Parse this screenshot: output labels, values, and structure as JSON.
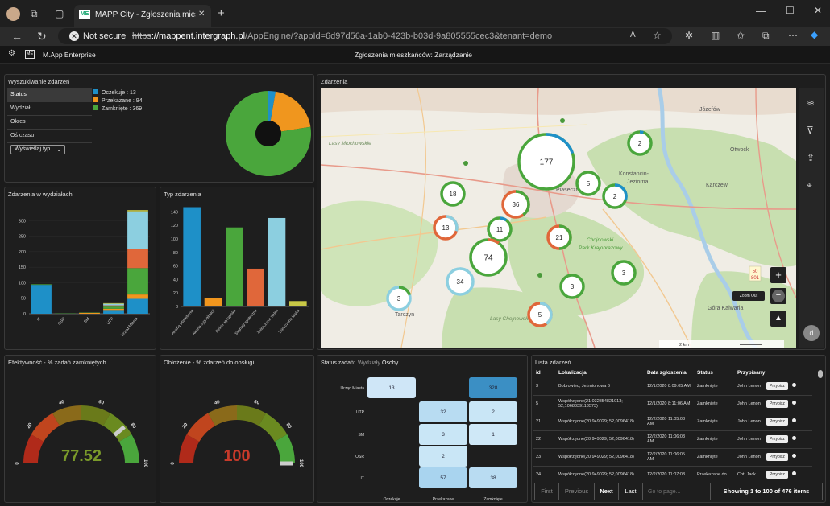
{
  "browser": {
    "tab_title": "MAPP City - Zgłoszenia mieszkańc",
    "tab_favicon": "ME",
    "not_secure": "Not secure",
    "url_scheme": "https",
    "url_host": "://mappent.intergraph.pl",
    "url_path": "/AppEngine/?appId=6d97d56a-1ab0-423b-b03d-9a805555cec3&tenant=demo"
  },
  "app": {
    "logo": "ME",
    "name": "M.App Enterprise",
    "title": "Zgłoszenia mieszkańców: Zarządzanie"
  },
  "search_panel": {
    "title": "Wyszukiwanie zdarzeń",
    "menu": [
      "Status",
      "Wydział",
      "Okres",
      "Oś czasu"
    ],
    "select": "Wyświetlaj typ",
    "legend": [
      {
        "label": "Oczekuje : 13",
        "color": "#1e90c8",
        "value": 13
      },
      {
        "label": "Przekazane : 94",
        "color": "#f0961e",
        "value": 94
      },
      {
        "label": "Zamknięte : 369",
        "color": "#4aa63c",
        "value": 369
      }
    ]
  },
  "dept_chart": {
    "title": "Zdarzenia w wydziałach",
    "chart_data": {
      "type": "bar",
      "stacked": true,
      "categories": [
        "IT",
        "OSR",
        "SM",
        "UTP",
        "Urząd Miasta"
      ],
      "ylim": [
        0,
        350
      ],
      "yticks": [
        0,
        50,
        100,
        150,
        200,
        250,
        300
      ],
      "series": [
        {
          "color": "#1e90c8",
          "values": [
            93,
            0,
            0,
            12,
            48
          ]
        },
        {
          "color": "#f0961e",
          "values": [
            0,
            0,
            3,
            4,
            14
          ]
        },
        {
          "color": "#4aa63c",
          "values": [
            2,
            1,
            1,
            7,
            85
          ]
        },
        {
          "color": "#e0673a",
          "values": [
            0,
            0,
            0,
            4,
            63
          ]
        },
        {
          "color": "#8ccfe0",
          "values": [
            0,
            0,
            0,
            5,
            120
          ]
        },
        {
          "color": "#c8c846",
          "values": [
            0,
            0,
            0,
            2,
            4
          ]
        }
      ]
    }
  },
  "type_chart": {
    "title": "Typ zdarzenia",
    "chart_data": {
      "type": "bar",
      "categories": [
        "Awaria oświetlenia",
        "Awaria sygnalizacji",
        "Dzikie wysypisko",
        "Sygnały społeczne",
        "Zniszczona zieleń",
        "Zniszczona ławka"
      ],
      "values": [
        147,
        13,
        117,
        56,
        131,
        8
      ],
      "colors": [
        "#1e90c8",
        "#f0961e",
        "#4aa63c",
        "#e0673a",
        "#8ccfe0",
        "#c8c846"
      ],
      "ylim": [
        0,
        150
      ],
      "yticks": [
        0,
        20,
        40,
        60,
        80,
        100,
        120,
        140
      ]
    }
  },
  "map": {
    "title": "Zdarzenia",
    "scale": "2 km",
    "zoom_out_label": "Zoom Out",
    "zoom_in": "+",
    "zoom_out": "−",
    "user_badge": "d",
    "road_sign": "50\n801",
    "places": [
      {
        "text": "Józefów",
        "cls": "town"
      },
      {
        "text": "Otwock",
        "cls": "town"
      },
      {
        "text": "Konstancin-",
        "cls": "town"
      },
      {
        "text": "Jeziorna",
        "cls": "town"
      },
      {
        "text": "Karczew",
        "cls": "town"
      },
      {
        "text": "Piaseczno",
        "cls": "town"
      },
      {
        "text": "Tarczyn",
        "cls": "town"
      },
      {
        "text": "Góra Kalwaria",
        "cls": "town"
      },
      {
        "text": "Lasy Młochowskie",
        "cls": "forest"
      },
      {
        "text": "Lasy Chojnowskie",
        "cls": "forest"
      },
      {
        "text": "Chojnowski",
        "cls": "park"
      },
      {
        "text": "Park Krajobrazowy",
        "cls": "park"
      }
    ],
    "clusters": [
      {
        "label": "177",
        "r": 34
      },
      {
        "label": "2",
        "r": 14
      },
      {
        "label": "5",
        "r": 14
      },
      {
        "label": "2",
        "r": 14
      },
      {
        "label": "18",
        "r": 14
      },
      {
        "label": "36",
        "r": 16
      },
      {
        "label": "13",
        "r": 14
      },
      {
        "label": "11",
        "r": 14
      },
      {
        "label": "21",
        "r": 14
      },
      {
        "label": "74",
        "r": 22
      },
      {
        "label": "34",
        "r": 16
      },
      {
        "label": "3",
        "r": 14
      },
      {
        "label": "3",
        "r": 14
      },
      {
        "label": "3",
        "r": 14
      },
      {
        "label": "5",
        "r": 14
      }
    ]
  },
  "gauge1": {
    "title": "Efektywność - % zadań zamkniętych",
    "value": "77.52",
    "value_num": 77.52,
    "value_color": "#7a9a2a",
    "ticks": [
      "0",
      "20",
      "40",
      "60",
      "80",
      "100"
    ]
  },
  "gauge2": {
    "title": "Obłożenie - % zdarzeń do obsługi",
    "value": "100",
    "value_num": 100,
    "value_color": "#c83a2a",
    "ticks": [
      "0",
      "20",
      "40",
      "60",
      "80",
      "100"
    ]
  },
  "status_panel": {
    "title": "Status zadań:",
    "tab_dept": "Wydziały",
    "tab_people": "Osoby",
    "rows": [
      "Urząd Miasta",
      "UTP",
      "SM",
      "OSR",
      "IT"
    ],
    "cols": [
      "Oczekuje",
      "Przekazane",
      "Zamknięte"
    ],
    "cells": [
      [
        "13",
        "",
        "328"
      ],
      [
        "",
        "32",
        "2"
      ],
      [
        "",
        "3",
        "1"
      ],
      [
        "",
        "2",
        ""
      ],
      [
        "",
        "57",
        "38"
      ]
    ]
  },
  "list_panel": {
    "title": "Lista zdarzeń",
    "headers": [
      "id",
      "Lokalizacja",
      "Data zgłoszenia",
      "Status",
      "Przypisany"
    ],
    "assign_label": "Przypisz",
    "rows": [
      {
        "id": "3",
        "loc": "Bobrowiec, Jeżmionowa 6",
        "date": "12/1/2020 8:09:05 AM",
        "status": "Zamknięte",
        "user": "John Lenon"
      },
      {
        "id": "5",
        "loc": "Współrzędne(21,032854821913; 52,1068839118573)",
        "date": "12/1/2020 8:11:06 AM",
        "status": "Zamknięte",
        "user": "John Lenon"
      },
      {
        "id": "21",
        "loc": "Współrzędne(20,949029; 52,0096418)",
        "date": "12/2/2020 11:05:03 AM",
        "status": "Zamknięte",
        "user": "John Lenon"
      },
      {
        "id": "22",
        "loc": "Współrzędne(20,949029; 52,0096418)",
        "date": "12/2/2020 11:06:03 AM",
        "status": "Zamknięte",
        "user": "John Lenon"
      },
      {
        "id": "23",
        "loc": "Współrzędne(20,949029; 52,0096418)",
        "date": "12/2/2020 11:06:05 AM",
        "status": "Zamknięte",
        "user": "John Lenon"
      },
      {
        "id": "24",
        "loc": "Współrzędne(20,949029; 52,0096418)",
        "date": "12/2/2020 11:07:03",
        "status": "Przekazane do",
        "user": "Cpt. Jack"
      }
    ],
    "pager": {
      "first": "First",
      "previous": "Previous",
      "next": "Next",
      "last": "Last",
      "goto_placeholder": "Go to page...",
      "info": "Showing 1 to 100 of 476 items"
    }
  }
}
